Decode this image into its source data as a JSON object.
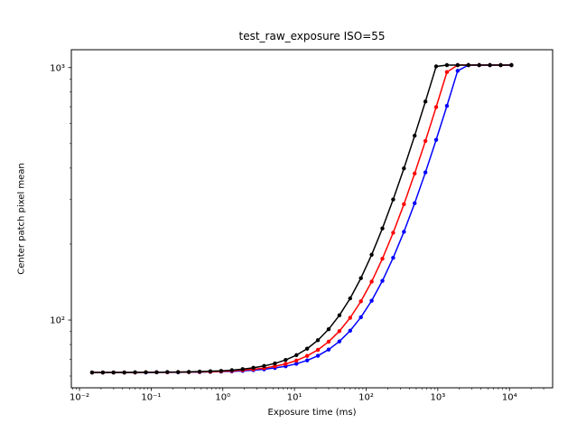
{
  "figure": {
    "background": "#ffffff"
  },
  "chart_data": {
    "type": "line",
    "title": "test_raw_exposure ISO=55",
    "xlabel": "Exposure time (ms)",
    "ylabel": "Center patch pixel mean",
    "xscale": "log",
    "yscale": "log",
    "xlim": [
      0.0077,
      40000
    ],
    "ylim": [
      53.9,
      1177
    ],
    "grid": false,
    "legend": "none",
    "x_ticks": {
      "values": [
        0.01,
        0.1,
        1,
        10,
        100,
        1000,
        10000
      ],
      "labels": [
        "10⁻²",
        "10⁻¹",
        "10⁰",
        "10¹",
        "10²",
        "10³",
        "10⁴"
      ]
    },
    "y_ticks": {
      "values": [
        100,
        1000
      ],
      "labels": [
        "10²",
        "10³"
      ]
    },
    "x": [
      0.015,
      0.0212,
      0.0299,
      0.0423,
      0.0597,
      0.0844,
      0.1192,
      0.1684,
      0.2379,
      0.3361,
      0.4748,
      0.6707,
      0.9475,
      1.338,
      1.891,
      2.671,
      3.773,
      5.33,
      7.53,
      10.64,
      15.03,
      21.23,
      29.99,
      42.36,
      59.84,
      84.53,
      119.4,
      168.7,
      238.3,
      336.6,
      475.5,
      671.7,
      948.9,
      1340,
      1894,
      2675,
      3779,
      5338,
      7541,
      10653
    ],
    "series": [
      {
        "name": "blue-series",
        "color": "#0000ff",
        "marker": "circle",
        "values": [
          62.0,
          62.0,
          62.0,
          62.0,
          62.0,
          62.0,
          62.1,
          62.1,
          62.1,
          62.2,
          62.2,
          62.3,
          62.5,
          62.6,
          62.9,
          63.3,
          63.8,
          64.6,
          65.6,
          67.1,
          69.2,
          72.2,
          76.4,
          82.3,
          90.7,
          102.6,
          119.3,
          143.0,
          176.4,
          223.6,
          290.2,
          384.4,
          517.5,
          705.2,
          971.1,
          1023,
          1023,
          1023,
          1023,
          1023
        ]
      },
      {
        "name": "red-series",
        "color": "#ff0000",
        "marker": "circle",
        "values": [
          62.0,
          62.0,
          62.0,
          62.0,
          62.0,
          62.1,
          62.1,
          62.1,
          62.2,
          62.2,
          62.3,
          62.4,
          62.6,
          62.9,
          63.3,
          63.8,
          64.5,
          65.6,
          67.0,
          69.1,
          72.1,
          76.2,
          82.1,
          90.4,
          102.1,
          118.6,
          142.0,
          175.0,
          221.7,
          287.5,
          380.6,
          512.0,
          697.8,
          959.8,
          1023,
          1023,
          1023,
          1023,
          1023,
          1023
        ]
      },
      {
        "name": "black-series",
        "color": "#000000",
        "marker": "circle",
        "values": [
          62.0,
          62.0,
          62.0,
          62.0,
          62.1,
          62.1,
          62.1,
          62.2,
          62.2,
          62.3,
          62.5,
          62.7,
          62.9,
          63.3,
          63.9,
          64.7,
          65.8,
          67.3,
          69.5,
          72.6,
          77.0,
          83.2,
          92.0,
          104.4,
          121.8,
          146.5,
          181.4,
          230.7,
          300.3,
          398.6,
          537.5,
          733.7,
          1010.9,
          1023,
          1023,
          1023,
          1023,
          1023,
          1023,
          1023
        ]
      }
    ]
  }
}
